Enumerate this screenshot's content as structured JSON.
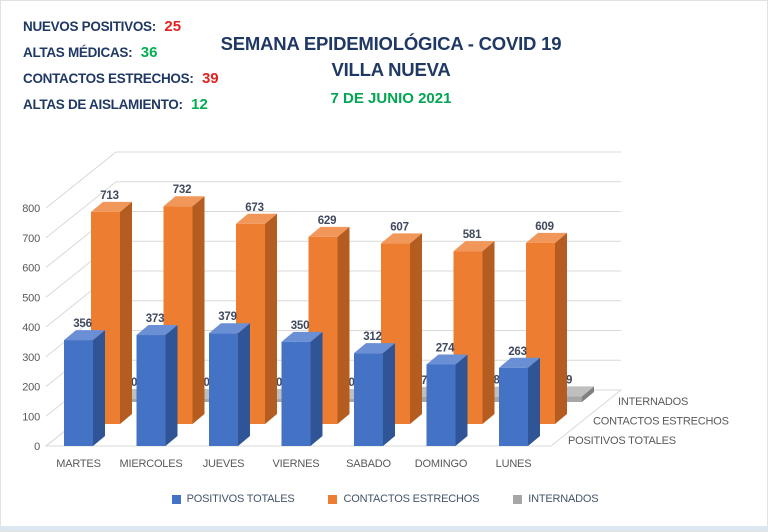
{
  "header": {
    "stats": [
      {
        "label": "NUEVOS POSITIVOS:",
        "value": "25",
        "value_color": "#e02420"
      },
      {
        "label": "ALTAS MÉDICAS:",
        "value": "36",
        "value_color": "#00b050"
      },
      {
        "label": "CONTACTOS ESTRECHOS:",
        "value": "39",
        "value_color": "#e02420"
      },
      {
        "label": "ALTAS DE AISLAMIENTO:",
        "value": "12",
        "value_color": "#00b050"
      }
    ],
    "title_line1": "SEMANA EPIDEMIOLÓGICA - COVID 19",
    "title_line2": "VILLA NUEVA",
    "date_line": "7 DE JUNIO 2021",
    "title_color": "#1f3864",
    "date_color": "#00a651"
  },
  "chart_data": {
    "type": "bar",
    "projection": "3d",
    "title": "",
    "categories": [
      "MARTES",
      "MIERCOLES",
      "JUEVES",
      "VIERNES",
      "SABADO",
      "DOMINGO",
      "LUNES"
    ],
    "series": [
      {
        "name": "POSITIVOS TOTALES",
        "color": "#4472c4",
        "color_top": "#6a8fd4",
        "color_side": "#2f5597",
        "values": [
          356,
          373,
          379,
          350,
          312,
          274,
          263
        ]
      },
      {
        "name": "CONTACTOS ESTRECHOS",
        "color": "#ed7d31",
        "color_top": "#f1975a",
        "color_side": "#b55d20",
        "values": [
          713,
          732,
          673,
          629,
          607,
          581,
          609
        ]
      },
      {
        "name": "INTERNADOS",
        "color": "#a6a6a6",
        "color_top": "#bfbfbf",
        "color_side": "#808080",
        "values": [
          10,
          10,
          10,
          10,
          17,
          18,
          19
        ]
      }
    ],
    "ylim": [
      0,
      800
    ],
    "ytick_step": 100,
    "grid": true,
    "legend_position": "bottom",
    "depth_axis_labels": [
      "INTERNADOS",
      "CONTACTOS ESTRECHOS",
      "POSITIVOS TOTALES"
    ],
    "axis_text_color": "#595959",
    "value_label_color": "#404a5e",
    "gridline_color": "#d9d9d9"
  }
}
